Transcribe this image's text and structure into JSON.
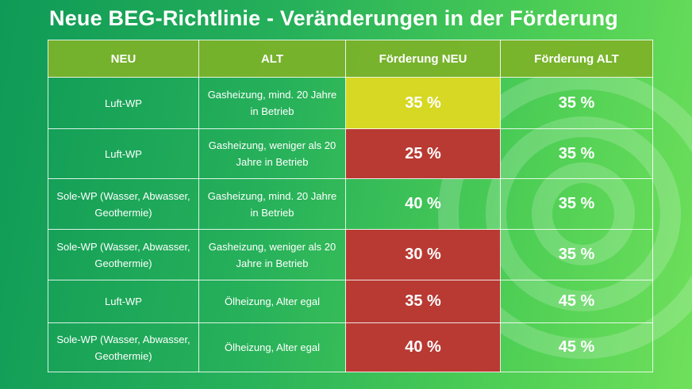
{
  "title": "Neue BEG-Richtlinie - Veränderungen in der Förderung",
  "colors": {
    "header": "#7db228",
    "yellow": "#d6d823",
    "red": "#b83a33",
    "background": "#27b15a"
  },
  "table": {
    "headers": [
      "NEU",
      "ALT",
      "Förderung NEU",
      "Förderung ALT"
    ],
    "rows": [
      {
        "neu": "Luft-WP",
        "alt": "Gasheizung, mind. 20 Jahre in Betrieb",
        "foerderung_neu": "35 %",
        "foerderung_alt": "35 %",
        "status": "yellow"
      },
      {
        "neu": "Luft-WP",
        "alt": "Gasheizung, weniger als 20 Jahre in Betrieb",
        "foerderung_neu": "25 %",
        "foerderung_alt": "35 %",
        "status": "red"
      },
      {
        "neu": "Sole-WP (Wasser, Abwasser, Geothermie)",
        "alt": "Gasheizung, mind. 20 Jahre in Betrieb",
        "foerderung_neu": "40 %",
        "foerderung_alt": "35 %",
        "status": "green"
      },
      {
        "neu": "Sole-WP (Wasser, Abwasser, Geothermie)",
        "alt": "Gasheizung, weniger als 20 Jahre in Betrieb",
        "foerderung_neu": "30 %",
        "foerderung_alt": "35 %",
        "status": "red"
      },
      {
        "neu": "Luft-WP",
        "alt": "Ölheizung, Alter egal",
        "foerderung_neu": "35 %",
        "foerderung_alt": "45 %",
        "status": "red"
      },
      {
        "neu": "Sole-WP (Wasser, Abwasser, Geothermie)",
        "alt": "Ölheizung, Alter egal",
        "foerderung_neu": "40 %",
        "foerderung_alt": "45 %",
        "status": "red"
      }
    ]
  }
}
